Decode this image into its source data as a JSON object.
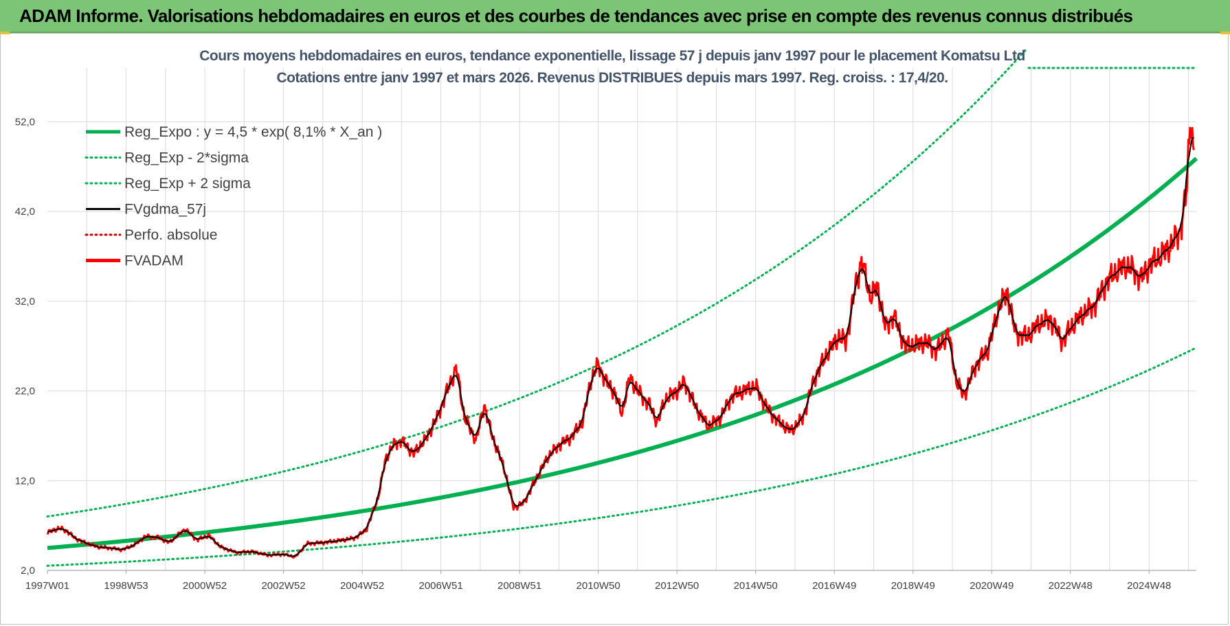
{
  "header": {
    "title": "ADAM Informe. Valorisations hebdomadaires en euros et des courbes de tendances avec prise en compte des revenus connus distribués",
    "bg_color": "#7cc576"
  },
  "chart_data": {
    "type": "line",
    "title_line1": "Cours moyens hebdomadaires en euros, tendance exponentielle, lissage 57 j depuis janv 1997  pour le placement Komatsu Ltd",
    "title_line2": "Cotations entre janv 1997 et mars 2026. Revenus DISTRIBUES depuis mars 1997. Reg. croiss. : 17,4/20.",
    "xlabel": "",
    "ylabel": "",
    "ylim": [
      2,
      58
    ],
    "xlim": [
      1997.0,
      2026.2
    ],
    "y_ticks": [
      "2,0",
      "12,0",
      "22,0",
      "32,0",
      "42,0",
      "52,0"
    ],
    "y_tick_values": [
      2,
      12,
      22,
      32,
      42,
      52
    ],
    "x_ticks": [
      "1997W01",
      "1998W53",
      "2000W52",
      "2002W52",
      "2004W52",
      "2006W51",
      "2008W51",
      "2010W50",
      "2012W50",
      "2014W50",
      "2016W49",
      "2018W49",
      "2020W49",
      "2022W48",
      "2024W48"
    ],
    "x_tick_years": [
      1997.0,
      1999.0,
      2001.0,
      2003.0,
      2005.0,
      2007.0,
      2009.0,
      2011.0,
      2013.0,
      2015.0,
      2017.0,
      2019.0,
      2021.0,
      2023.0,
      2025.0
    ],
    "legend": [
      {
        "label": "Reg_Expo : y = 4,5 * exp( 8,1% *  X_an )",
        "color": "#00b050",
        "style": "solid-thick"
      },
      {
        "label": "Reg_Exp - 2*sigma",
        "color": "#00b050",
        "style": "dotted"
      },
      {
        "label": "Reg_Exp + 2 sigma",
        "color": "#00b050",
        "style": "dotted"
      },
      {
        "label": "FVgdma_57j",
        "color": "#000000",
        "style": "solid"
      },
      {
        "label": "Perfo. absolue",
        "color": "#c00000",
        "style": "dotted"
      },
      {
        "label": "FVADAM",
        "color": "#ff0000",
        "style": "solid-thick"
      }
    ],
    "regression": {
      "a": 4.5,
      "rate": 0.081,
      "minus_2sigma_factor": 0.56,
      "plus_2sigma_factor": 1.78
    },
    "fvadam_points": [
      [
        1997.0,
        6.2
      ],
      [
        1997.3,
        6.7
      ],
      [
        1997.5,
        6.4
      ],
      [
        1997.7,
        5.6
      ],
      [
        1998.0,
        5.0
      ],
      [
        1998.3,
        4.6
      ],
      [
        1998.6,
        4.5
      ],
      [
        1998.9,
        4.3
      ],
      [
        1999.2,
        4.8
      ],
      [
        1999.5,
        5.8
      ],
      [
        1999.8,
        5.7
      ],
      [
        2000.1,
        5.1
      ],
      [
        2000.5,
        6.6
      ],
      [
        2000.8,
        5.4
      ],
      [
        2001.1,
        5.9
      ],
      [
        2001.4,
        4.6
      ],
      [
        2001.8,
        4.0
      ],
      [
        2002.2,
        4.1
      ],
      [
        2002.6,
        3.7
      ],
      [
        2003.0,
        3.8
      ],
      [
        2003.3,
        3.5
      ],
      [
        2003.6,
        5.0
      ],
      [
        2004.0,
        5.1
      ],
      [
        2004.4,
        5.3
      ],
      [
        2004.8,
        5.6
      ],
      [
        2005.1,
        6.5
      ],
      [
        2005.4,
        10.0
      ],
      [
        2005.6,
        14.5
      ],
      [
        2005.8,
        16.0
      ],
      [
        2006.0,
        16.5
      ],
      [
        2006.3,
        15.0
      ],
      [
        2006.6,
        16.5
      ],
      [
        2006.9,
        19.0
      ],
      [
        2007.2,
        22.5
      ],
      [
        2007.4,
        24.5
      ],
      [
        2007.6,
        19.0
      ],
      [
        2007.9,
        16.5
      ],
      [
        2008.1,
        20.5
      ],
      [
        2008.3,
        17.0
      ],
      [
        2008.6,
        13.5
      ],
      [
        2008.85,
        9.0
      ],
      [
        2009.1,
        9.5
      ],
      [
        2009.4,
        12.0
      ],
      [
        2009.7,
        14.5
      ],
      [
        2010.0,
        16.0
      ],
      [
        2010.3,
        16.8
      ],
      [
        2010.6,
        18.5
      ],
      [
        2010.8,
        23.0
      ],
      [
        2011.0,
        25.0
      ],
      [
        2011.2,
        23.0
      ],
      [
        2011.4,
        22.0
      ],
      [
        2011.6,
        19.5
      ],
      [
        2011.8,
        23.5
      ],
      [
        2012.0,
        22.0
      ],
      [
        2012.3,
        20.5
      ],
      [
        2012.5,
        18.5
      ],
      [
        2012.7,
        21.0
      ],
      [
        2013.0,
        22.0
      ],
      [
        2013.2,
        23.0
      ],
      [
        2013.5,
        20.0
      ],
      [
        2013.8,
        18.0
      ],
      [
        2014.1,
        19.0
      ],
      [
        2014.4,
        21.5
      ],
      [
        2014.7,
        22.0
      ],
      [
        2015.0,
        22.5
      ],
      [
        2015.3,
        20.0
      ],
      [
        2015.6,
        18.5
      ],
      [
        2015.9,
        17.5
      ],
      [
        2016.2,
        19.0
      ],
      [
        2016.5,
        23.5
      ],
      [
        2016.8,
        26.0
      ],
      [
        2017.1,
        28.0
      ],
      [
        2017.3,
        27.5
      ],
      [
        2017.55,
        34.0
      ],
      [
        2017.7,
        36.5
      ],
      [
        2017.9,
        32.5
      ],
      [
        2018.1,
        33.5
      ],
      [
        2018.3,
        29.0
      ],
      [
        2018.5,
        30.5
      ],
      [
        2018.8,
        27.0
      ],
      [
        2019.0,
        27.0
      ],
      [
        2019.3,
        27.5
      ],
      [
        2019.6,
        26.5
      ],
      [
        2019.9,
        28.5
      ],
      [
        2020.1,
        23.0
      ],
      [
        2020.3,
        21.5
      ],
      [
        2020.6,
        25.0
      ],
      [
        2020.9,
        26.5
      ],
      [
        2021.2,
        31.5
      ],
      [
        2021.4,
        33.0
      ],
      [
        2021.6,
        28.5
      ],
      [
        2021.9,
        28.0
      ],
      [
        2022.2,
        29.5
      ],
      [
        2022.5,
        30.0
      ],
      [
        2022.8,
        27.5
      ],
      [
        2023.0,
        29.0
      ],
      [
        2023.3,
        30.5
      ],
      [
        2023.6,
        31.5
      ],
      [
        2023.9,
        34.0
      ],
      [
        2024.1,
        35.0
      ],
      [
        2024.4,
        36.0
      ],
      [
        2024.6,
        35.5
      ],
      [
        2024.8,
        34.5
      ],
      [
        2025.0,
        36.0
      ],
      [
        2025.3,
        37.0
      ],
      [
        2025.6,
        38.5
      ],
      [
        2025.8,
        40.0
      ],
      [
        2025.95,
        44.0
      ],
      [
        2026.05,
        53.0
      ],
      [
        2026.15,
        47.0
      ]
    ]
  }
}
